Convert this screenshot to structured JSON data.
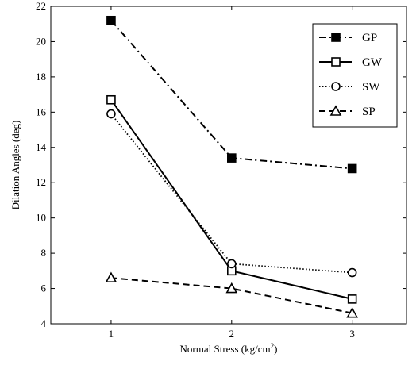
{
  "chart_data": {
    "type": "line",
    "title": "",
    "xlabel": "Normal Stress (kg/cm",
    "xlabel_superscript": "2",
    "xlabel_suffix": ")",
    "ylabel": "Dilation Angles (deg)",
    "x": [
      1,
      2,
      3
    ],
    "xlim": [
      0.5,
      3.45
    ],
    "ylim": [
      4,
      22
    ],
    "xticks": [
      1,
      2,
      3
    ],
    "yticks": [
      4,
      6,
      8,
      10,
      12,
      14,
      16,
      18,
      20,
      22
    ],
    "grid": false,
    "legend_position": "top-right",
    "series": [
      {
        "name": "GP",
        "values": [
          21.2,
          13.4,
          12.8
        ],
        "line_style": "dash-dot",
        "marker": "filled-square"
      },
      {
        "name": "GW",
        "values": [
          16.7,
          7.0,
          5.4
        ],
        "line_style": "solid",
        "marker": "open-square"
      },
      {
        "name": "SW",
        "values": [
          15.9,
          7.4,
          6.9
        ],
        "line_style": "dotted",
        "marker": "open-circle"
      },
      {
        "name": "SP",
        "values": [
          6.6,
          6.0,
          4.6
        ],
        "line_style": "dashed",
        "marker": "open-triangle"
      }
    ]
  }
}
